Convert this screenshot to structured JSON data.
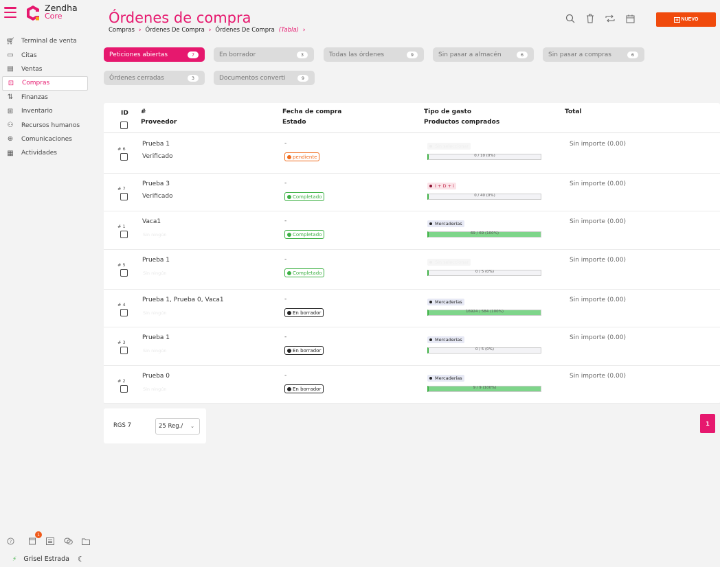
{
  "app": {
    "name": "Zendha",
    "sub": "Core"
  },
  "sidebar": {
    "items": [
      {
        "label": "Terminal de venta",
        "icon": "cart-icon"
      },
      {
        "label": "Citas",
        "icon": "calendar-icon"
      },
      {
        "label": "Ventas",
        "icon": "money-icon"
      },
      {
        "label": "Compras",
        "icon": "purchase-icon"
      },
      {
        "label": "Finanzas",
        "icon": "finance-icon"
      },
      {
        "label": "Inventario",
        "icon": "inventory-icon"
      },
      {
        "label": "Recursos humanos",
        "icon": "people-icon"
      },
      {
        "label": "Comunicaciones",
        "icon": "globe-icon"
      },
      {
        "label": "Actividades",
        "icon": "activities-icon"
      }
    ],
    "active_index": 3,
    "notification_count": "1",
    "user_name": "Grisel Estrada"
  },
  "header": {
    "title": "Órdenes de compra",
    "breadcrumb": [
      "Compras",
      "Órdenes De Compra",
      "Órdenes De Compra"
    ],
    "breadcrumb_view": "(Tabla)",
    "new_button": "NUEVO"
  },
  "filters": [
    {
      "label": "Peticiones abiertas",
      "count": "7"
    },
    {
      "label": "En borrador",
      "count": "3"
    },
    {
      "label": "Todas las órdenes",
      "count": "9"
    },
    {
      "label": "Sin pasar a almacén",
      "count": "6"
    },
    {
      "label": "Sin pasar a compras",
      "count": "6"
    },
    {
      "label": "Órdenes cerradas",
      "count": "3"
    },
    {
      "label": "Documentos converti",
      "count": "9"
    }
  ],
  "table": {
    "headers": {
      "id": "ID",
      "num": "#",
      "proveedor": "Proveedor",
      "fecha": "Fecha de compra",
      "estado": "Estado",
      "tipo": "Tipo de gasto",
      "productos": "Productos comprados",
      "total": "Total"
    },
    "rows": [
      {
        "id": "# 6",
        "proveedor": "Prueba 1",
        "estado_doc": "Verificado",
        "faded": "",
        "fecha": "-",
        "status": "pendiente",
        "status_type": "pend",
        "tag": "Sin seleccionar",
        "tag_type": "faded",
        "productos": "0 / 10 (0%)",
        "progress": 0,
        "total": "Sin importe (0.00)"
      },
      {
        "id": "# 7",
        "proveedor": "Prueba 3",
        "estado_doc": "Verificado",
        "faded": "",
        "fecha": "-",
        "status": "Completado",
        "status_type": "comp",
        "tag": "I + D + i",
        "tag_type": "id",
        "productos": "0 / 40 (0%)",
        "progress": 0,
        "total": "Sin importe (0.00)"
      },
      {
        "id": "# 1",
        "proveedor": "Vaca1",
        "estado_doc": "",
        "faded": "Sin ningún",
        "fecha": "-",
        "status": "Completado",
        "status_type": "comp",
        "tag": "Mercaderías",
        "tag_type": "merc",
        "productos": "69 / 69 (100%)",
        "progress": 100,
        "total": "Sin importe (0.00)"
      },
      {
        "id": "# 5",
        "proveedor": "Prueba 1",
        "estado_doc": "",
        "faded": "Sin ningún",
        "fecha": "-",
        "status": "Completado",
        "status_type": "comp",
        "tag": "Sin seleccionar",
        "tag_type": "faded",
        "productos": "0 / 5 (0%)",
        "progress": 0,
        "total": "Sin importe (0.00)"
      },
      {
        "id": "# 4",
        "proveedor": "Prueba 1, Prueba 0, Vaca1",
        "estado_doc": "",
        "faded": "Sin ningún",
        "fecha": "-",
        "status": "En borrador",
        "status_type": "borr",
        "tag": "Mercaderías",
        "tag_type": "merc",
        "productos": "16924 / 584 (100%)",
        "progress": 100,
        "total": "Sin importe (0.00)"
      },
      {
        "id": "# 3",
        "proveedor": "Prueba 1",
        "estado_doc": "",
        "faded": "Sin ningún",
        "fecha": "-",
        "status": "En borrador",
        "status_type": "borr",
        "tag": "Mercaderías",
        "tag_type": "merc",
        "productos": "0 / 5 (0%)",
        "progress": 0,
        "total": "Sin importe (0.00)"
      },
      {
        "id": "# 2",
        "proveedor": "Prueba 0",
        "estado_doc": "",
        "faded": "Sin ningún",
        "fecha": "-",
        "status": "En borrador",
        "status_type": "borr",
        "tag": "Mercaderías",
        "tag_type": "merc",
        "productos": "9 / 9 (100%)",
        "progress": 100,
        "total": "Sin importe (0.00)"
      }
    ]
  },
  "footer": {
    "rgs": "RGS 7",
    "page_size": "25 Reg./",
    "page": "1"
  },
  "colors": {
    "accent": "#e6186e",
    "new_button": "#f04a0c",
    "completed": "#3cb043",
    "pending": "#f06a1a"
  }
}
